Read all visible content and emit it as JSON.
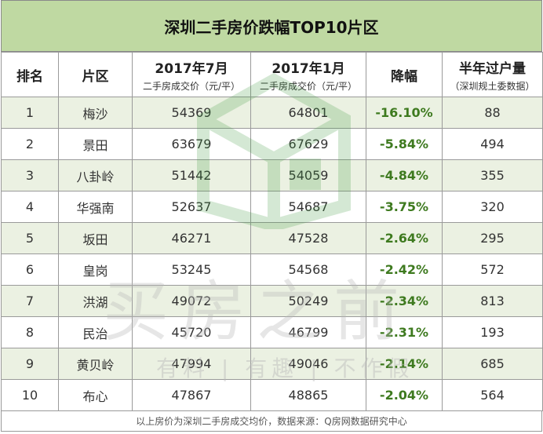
{
  "title": "深圳二手房价跌幅TOP10片区",
  "headers": {
    "rank": "排名",
    "district": "片区",
    "jul": "2017年7月",
    "jul_sub": "二手房成交价（元/平）",
    "jan": "2017年1月",
    "jan_sub": "二手房成交价（元/平）",
    "drop": "降幅",
    "volume": "半年过户量",
    "volume_sub": "（深圳规土委数据）"
  },
  "rows": [
    {
      "rank": "1",
      "district": "梅沙",
      "jul": "54369",
      "jan": "64801",
      "drop": "-16.10%",
      "volume": "88"
    },
    {
      "rank": "2",
      "district": "景田",
      "jul": "63679",
      "jan": "67629",
      "drop": "-5.84%",
      "volume": "494"
    },
    {
      "rank": "3",
      "district": "八卦岭",
      "jul": "51442",
      "jan": "54059",
      "drop": "-4.84%",
      "volume": "355"
    },
    {
      "rank": "4",
      "district": "华强南",
      "jul": "52637",
      "jan": "54687",
      "drop": "-3.75%",
      "volume": "320"
    },
    {
      "rank": "5",
      "district": "坂田",
      "jul": "46271",
      "jan": "47528",
      "drop": "-2.64%",
      "volume": "295"
    },
    {
      "rank": "6",
      "district": "皇岗",
      "jul": "53245",
      "jan": "54568",
      "drop": "-2.42%",
      "volume": "572"
    },
    {
      "rank": "7",
      "district": "洪湖",
      "jul": "49072",
      "jan": "50249",
      "drop": "-2.34%",
      "volume": "813"
    },
    {
      "rank": "8",
      "district": "民治",
      "jul": "45720",
      "jan": "46799",
      "drop": "-2.31%",
      "volume": "193"
    },
    {
      "rank": "9",
      "district": "黄贝岭",
      "jul": "47994",
      "jan": "49046",
      "drop": "-2.14%",
      "volume": "685"
    },
    {
      "rank": "10",
      "district": "布心",
      "jul": "47867",
      "jan": "48865",
      "drop": "-2.04%",
      "volume": "564"
    }
  ],
  "footer": "以上房价为深圳二手房成交均价，数据来源：Q房网数据研究中心",
  "watermark": {
    "main": "买房之前",
    "sub": "有料 | 有趣 | 不作假"
  },
  "colors": {
    "title_bg": "#bfd9a2",
    "stripe_bg": "#ebf1e2",
    "drop_text": "#3e7a1f"
  }
}
